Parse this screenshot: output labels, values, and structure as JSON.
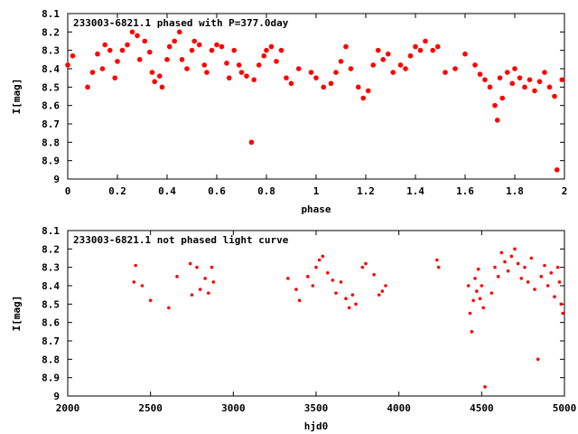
{
  "chart_data": [
    {
      "type": "scatter",
      "title": "233003-6821.1 phased with P=377.0day",
      "xlabel": "phase",
      "ylabel": "I[mag]",
      "xlim": [
        0,
        2
      ],
      "ylim": [
        9,
        8.1
      ],
      "y_inverted": true,
      "xticks": [
        0,
        0.2,
        0.4,
        0.6,
        0.8,
        1,
        1.2,
        1.4,
        1.6,
        1.8,
        2
      ],
      "xtick_labels": [
        "0",
        "0.2",
        "0.4",
        "0.6",
        "0.8",
        "1",
        "1.2",
        "1.4",
        "1.6",
        "1.8",
        "2"
      ],
      "yticks": [
        8.1,
        8.2,
        8.3,
        8.4,
        8.5,
        8.6,
        8.7,
        8.8,
        8.9,
        9
      ],
      "ytick_labels": [
        "8.1",
        "8.2",
        "8.3",
        "8.4",
        "8.5",
        "8.6",
        "8.7",
        "8.8",
        "8.9",
        "9"
      ],
      "marker": "filled circle",
      "color": "#ff0000",
      "grid": false,
      "points": [
        [
          0.0,
          8.38
        ],
        [
          0.02,
          8.33
        ],
        [
          0.08,
          8.5
        ],
        [
          0.1,
          8.42
        ],
        [
          0.12,
          8.32
        ],
        [
          0.14,
          8.4
        ],
        [
          0.15,
          8.27
        ],
        [
          0.17,
          8.3
        ],
        [
          0.19,
          8.45
        ],
        [
          0.2,
          8.36
        ],
        [
          0.22,
          8.3
        ],
        [
          0.24,
          8.27
        ],
        [
          0.26,
          8.2
        ],
        [
          0.28,
          8.22
        ],
        [
          0.29,
          8.35
        ],
        [
          0.31,
          8.25
        ],
        [
          0.33,
          8.31
        ],
        [
          0.34,
          8.42
        ],
        [
          0.35,
          8.47
        ],
        [
          0.37,
          8.44
        ],
        [
          0.38,
          8.5
        ],
        [
          0.4,
          8.35
        ],
        [
          0.41,
          8.28
        ],
        [
          0.43,
          8.25
        ],
        [
          0.45,
          8.2
        ],
        [
          0.46,
          8.35
        ],
        [
          0.48,
          8.4
        ],
        [
          0.5,
          8.3
        ],
        [
          0.51,
          8.25
        ],
        [
          0.53,
          8.27
        ],
        [
          0.55,
          8.38
        ],
        [
          0.56,
          8.42
        ],
        [
          0.58,
          8.3
        ],
        [
          0.6,
          8.27
        ],
        [
          0.62,
          8.28
        ],
        [
          0.64,
          8.37
        ],
        [
          0.65,
          8.45
        ],
        [
          0.67,
          8.3
        ],
        [
          0.69,
          8.38
        ],
        [
          0.7,
          8.42
        ],
        [
          0.72,
          8.44
        ],
        [
          0.74,
          8.8
        ],
        [
          0.75,
          8.46
        ],
        [
          0.77,
          8.38
        ],
        [
          0.79,
          8.33
        ],
        [
          0.8,
          8.3
        ],
        [
          0.82,
          8.28
        ],
        [
          0.84,
          8.36
        ],
        [
          0.86,
          8.3
        ],
        [
          0.88,
          8.45
        ],
        [
          0.9,
          8.48
        ],
        [
          0.93,
          8.4
        ],
        [
          0.98,
          8.42
        ],
        [
          1.0,
          8.45
        ],
        [
          1.03,
          8.5
        ],
        [
          1.06,
          8.48
        ],
        [
          1.08,
          8.42
        ],
        [
          1.1,
          8.36
        ],
        [
          1.12,
          8.28
        ],
        [
          1.14,
          8.4
        ],
        [
          1.17,
          8.5
        ],
        [
          1.19,
          8.56
        ],
        [
          1.21,
          8.52
        ],
        [
          1.23,
          8.38
        ],
        [
          1.25,
          8.3
        ],
        [
          1.27,
          8.35
        ],
        [
          1.29,
          8.32
        ],
        [
          1.31,
          8.42
        ],
        [
          1.34,
          8.38
        ],
        [
          1.36,
          8.4
        ],
        [
          1.38,
          8.33
        ],
        [
          1.4,
          8.28
        ],
        [
          1.42,
          8.3
        ],
        [
          1.44,
          8.25
        ],
        [
          1.47,
          8.3
        ],
        [
          1.49,
          8.28
        ],
        [
          1.52,
          8.42
        ],
        [
          1.56,
          8.4
        ],
        [
          1.6,
          8.32
        ],
        [
          1.64,
          8.38
        ],
        [
          1.66,
          8.43
        ],
        [
          1.68,
          8.46
        ],
        [
          1.7,
          8.5
        ],
        [
          1.72,
          8.6
        ],
        [
          1.73,
          8.68
        ],
        [
          1.74,
          8.45
        ],
        [
          1.75,
          8.56
        ],
        [
          1.77,
          8.42
        ],
        [
          1.79,
          8.48
        ],
        [
          1.8,
          8.4
        ],
        [
          1.82,
          8.45
        ],
        [
          1.84,
          8.5
        ],
        [
          1.86,
          8.46
        ],
        [
          1.88,
          8.52
        ],
        [
          1.9,
          8.47
        ],
        [
          1.92,
          8.42
        ],
        [
          1.94,
          8.5
        ],
        [
          1.96,
          8.55
        ],
        [
          1.97,
          8.95
        ],
        [
          1.99,
          8.46
        ]
      ]
    },
    {
      "type": "scatter",
      "title": "233003-6821.1 not phased light curve",
      "xlabel": "hjd0",
      "ylabel": "I[mag]",
      "xlim": [
        2000,
        5000
      ],
      "ylim": [
        9,
        8.1
      ],
      "y_inverted": true,
      "xticks": [
        2000,
        2500,
        3000,
        3500,
        4000,
        4500,
        5000
      ],
      "xtick_labels": [
        "2000",
        "2500",
        "3000",
        "3500",
        "4000",
        "4500",
        "5000"
      ],
      "yticks": [
        8.1,
        8.2,
        8.3,
        8.4,
        8.5,
        8.6,
        8.7,
        8.8,
        8.9,
        9
      ],
      "ytick_labels": [
        "8.1",
        "8.2",
        "8.3",
        "8.4",
        "8.5",
        "8.6",
        "8.7",
        "8.8",
        "8.9",
        "9"
      ],
      "marker": "small filled circle",
      "color": "#ff0000",
      "grid": false,
      "points": [
        [
          2400,
          8.38
        ],
        [
          2410,
          8.29
        ],
        [
          2450,
          8.4
        ],
        [
          2500,
          8.48
        ],
        [
          2610,
          8.52
        ],
        [
          2660,
          8.35
        ],
        [
          2740,
          8.28
        ],
        [
          2750,
          8.45
        ],
        [
          2780,
          8.3
        ],
        [
          2800,
          8.42
        ],
        [
          2830,
          8.36
        ],
        [
          2850,
          8.44
        ],
        [
          2870,
          8.3
        ],
        [
          2880,
          8.38
        ],
        [
          3330,
          8.36
        ],
        [
          3380,
          8.42
        ],
        [
          3400,
          8.48
        ],
        [
          3450,
          8.35
        ],
        [
          3480,
          8.4
        ],
        [
          3500,
          8.3
        ],
        [
          3520,
          8.26
        ],
        [
          3540,
          8.24
        ],
        [
          3570,
          8.33
        ],
        [
          3600,
          8.37
        ],
        [
          3620,
          8.44
        ],
        [
          3650,
          8.38
        ],
        [
          3680,
          8.47
        ],
        [
          3700,
          8.52
        ],
        [
          3720,
          8.45
        ],
        [
          3740,
          8.5
        ],
        [
          3780,
          8.3
        ],
        [
          3800,
          8.28
        ],
        [
          3850,
          8.34
        ],
        [
          3880,
          8.45
        ],
        [
          3900,
          8.43
        ],
        [
          3920,
          8.4
        ],
        [
          4230,
          8.26
        ],
        [
          4240,
          8.3
        ],
        [
          4420,
          8.4
        ],
        [
          4430,
          8.55
        ],
        [
          4440,
          8.65
        ],
        [
          4450,
          8.48
        ],
        [
          4460,
          8.36
        ],
        [
          4470,
          8.43
        ],
        [
          4480,
          8.31
        ],
        [
          4490,
          8.47
        ],
        [
          4500,
          8.4
        ],
        [
          4510,
          8.52
        ],
        [
          4520,
          8.95
        ],
        [
          4560,
          8.44
        ],
        [
          4580,
          8.3
        ],
        [
          4600,
          8.35
        ],
        [
          4620,
          8.22
        ],
        [
          4640,
          8.27
        ],
        [
          4660,
          8.32
        ],
        [
          4680,
          8.24
        ],
        [
          4700,
          8.2
        ],
        [
          4720,
          8.28
        ],
        [
          4740,
          8.36
        ],
        [
          4760,
          8.3
        ],
        [
          4780,
          8.38
        ],
        [
          4800,
          8.25
        ],
        [
          4820,
          8.42
        ],
        [
          4840,
          8.8
        ],
        [
          4860,
          8.35
        ],
        [
          4880,
          8.29
        ],
        [
          4900,
          8.4
        ],
        [
          4920,
          8.33
        ],
        [
          4940,
          8.46
        ],
        [
          4960,
          8.3
        ],
        [
          4970,
          8.38
        ],
        [
          4980,
          8.5
        ],
        [
          4990,
          8.55
        ]
      ]
    }
  ]
}
